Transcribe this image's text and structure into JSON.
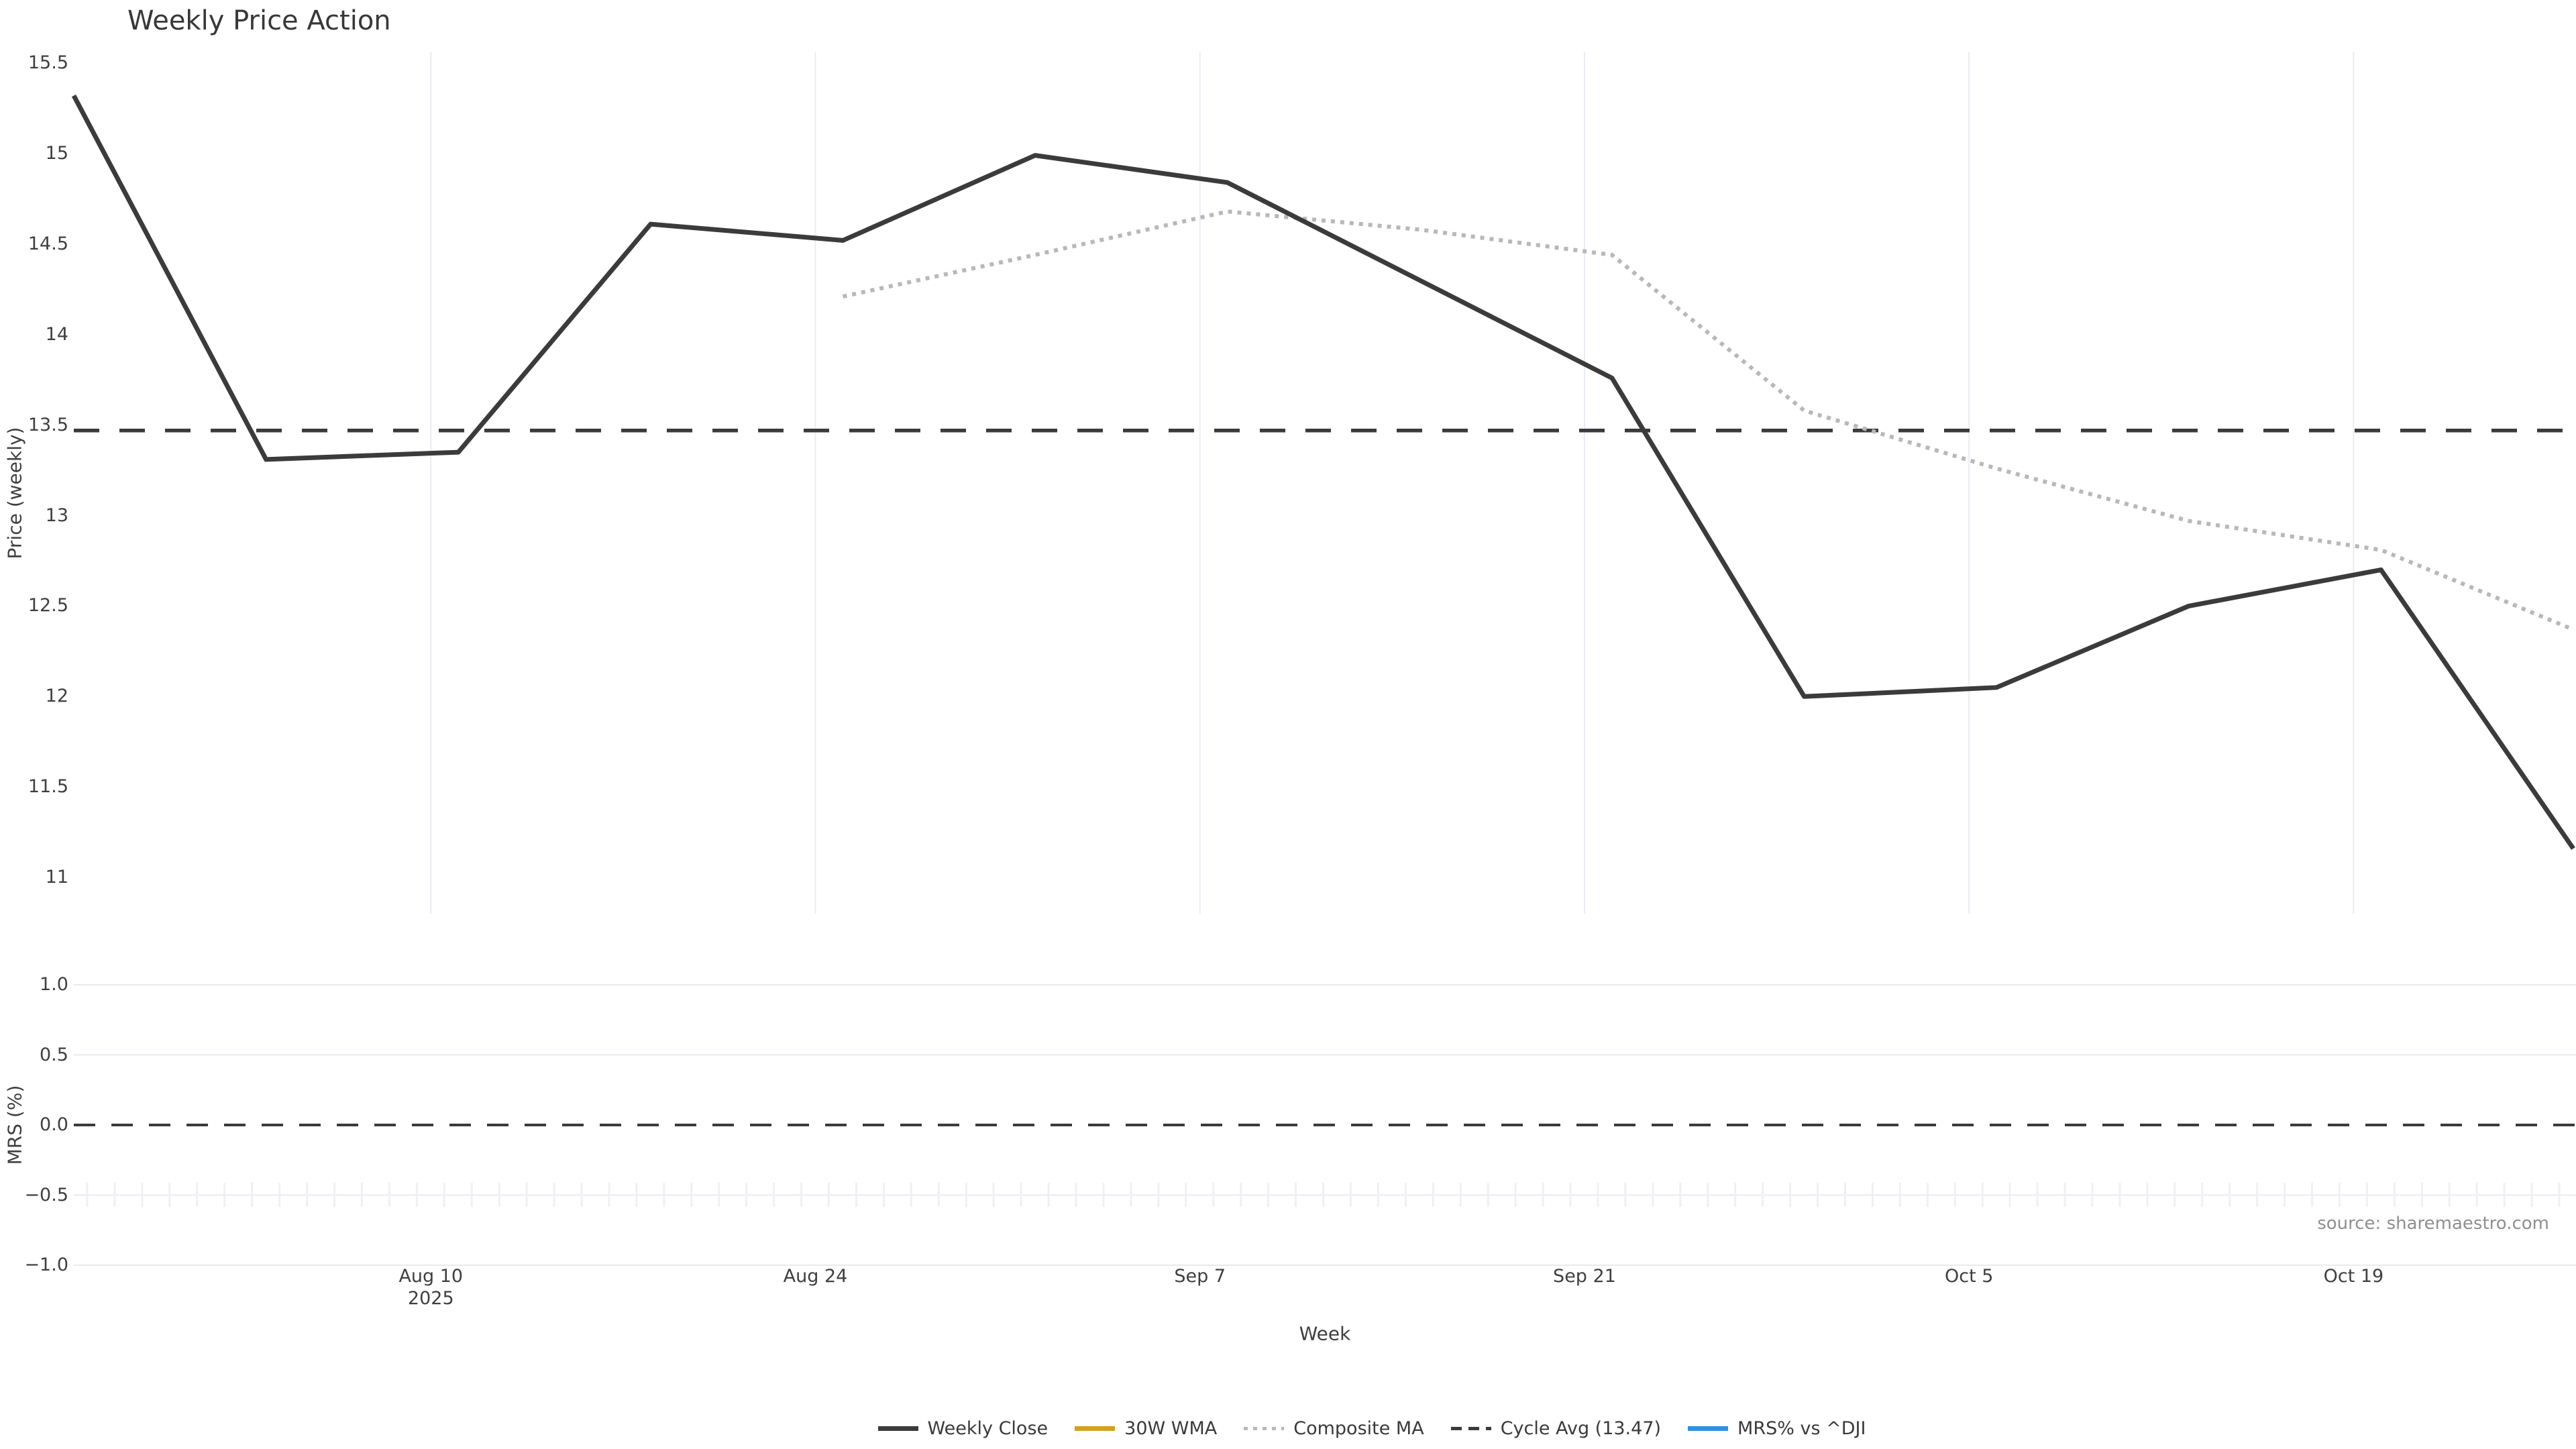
{
  "title": "Weekly Price Action",
  "source_note": "source: sharemaestro.com",
  "x_axis": {
    "title": "Week",
    "ticks": [
      {
        "label": "Aug 10",
        "year": "2025",
        "day_offset": 13
      },
      {
        "label": "Aug 24",
        "day_offset": 27
      },
      {
        "label": "Sep 7",
        "day_offset": 41
      },
      {
        "label": "Sep 21",
        "day_offset": 55
      },
      {
        "label": "Oct 5",
        "day_offset": 69
      },
      {
        "label": "Oct 19",
        "day_offset": 83
      }
    ]
  },
  "price_panel": {
    "ylabel": "Price (weekly)",
    "y_tick_labels": [
      "15.5",
      "15",
      "14.5",
      "14",
      "13.5",
      "13",
      "12.5",
      "12",
      "11.5",
      "11"
    ],
    "y_tick_values": [
      15.5,
      15,
      14.5,
      14,
      13.5,
      13,
      12.5,
      12,
      11.5,
      11
    ],
    "ylim": [
      10.8,
      15.6
    ]
  },
  "mrs_panel": {
    "ylabel": "MRS (%)",
    "y_tick_labels": [
      "1.0",
      "0.5",
      "0.0",
      "−0.5",
      "−1.0"
    ],
    "y_tick_values": [
      1.0,
      0.5,
      0.0,
      -0.5,
      -1.0
    ],
    "ylim": [
      -1.1,
      1.1
    ]
  },
  "legend": {
    "items": [
      {
        "label": "Weekly Close",
        "color": "#3b3b3b",
        "style": "solid"
      },
      {
        "label": "30W WMA",
        "color": "#d4a11d",
        "style": "solid"
      },
      {
        "label": "Composite MA",
        "color": "#b8b8b8",
        "style": "dotted"
      },
      {
        "label": "Cycle Avg (13.47)",
        "color": "#3b3b3b",
        "style": "dashed"
      },
      {
        "label": "MRS% vs ^DJI",
        "color": "#2e91e5",
        "style": "solid"
      }
    ]
  },
  "chart_data": [
    {
      "type": "line",
      "panel": "price",
      "title": "Weekly Price Action",
      "xlabel": "Week",
      "ylabel": "Price (weekly)",
      "ylim": [
        10.8,
        15.6
      ],
      "x_tick_labels": [
        "Aug 10 2025",
        "Aug 24",
        "Sep 7",
        "Sep 21",
        "Oct 5",
        "Oct 19"
      ],
      "x": [
        "2025-07-28",
        "2025-08-04",
        "2025-08-11",
        "2025-08-18",
        "2025-08-25",
        "2025-09-01",
        "2025-09-08",
        "2025-09-15",
        "2025-09-22",
        "2025-09-29",
        "2025-10-06",
        "2025-10-13",
        "2025-10-20",
        "2025-10-27"
      ],
      "x_day_offsets": [
        0,
        7,
        14,
        21,
        28,
        35,
        42,
        49,
        56,
        63,
        70,
        77,
        84,
        91
      ],
      "series": [
        {
          "name": "Weekly Close",
          "color": "#3b3b3b",
          "style": "solid",
          "values": [
            15.32,
            13.31,
            13.35,
            14.61,
            14.52,
            14.99,
            14.84,
            14.3,
            13.76,
            12.0,
            12.05,
            12.5,
            12.7,
            11.16
          ]
        },
        {
          "name": "30W WMA",
          "color": "#d4a11d",
          "style": "solid",
          "values": [],
          "note": "listed in legend but no data visible in plotted range"
        },
        {
          "name": "Composite MA",
          "color": "#b8b8b8",
          "style": "dotted",
          "start_index": 4,
          "values": [
            14.21,
            14.44,
            14.68,
            14.58,
            14.44,
            13.58,
            13.26,
            12.97,
            12.81,
            12.37
          ]
        },
        {
          "name": "Cycle Avg",
          "color": "#3b3b3b",
          "style": "dashed",
          "constant": 13.47
        }
      ],
      "grid": "vertical date gridlines only",
      "legend_position": "bottom center"
    },
    {
      "type": "line",
      "panel": "mrs",
      "ylabel": "MRS (%)",
      "ylim": [
        -1.1,
        1.1
      ],
      "series": [
        {
          "name": "MRS% vs ^DJI",
          "color": "#2e91e5",
          "style": "solid",
          "values": [],
          "note": "listed in legend but no data visible in plotted range"
        },
        {
          "name": "zero reference",
          "color": "#3b3b3b",
          "style": "dashed",
          "constant": 0.0
        }
      ],
      "grid": "horizontal gridlines only"
    }
  ]
}
